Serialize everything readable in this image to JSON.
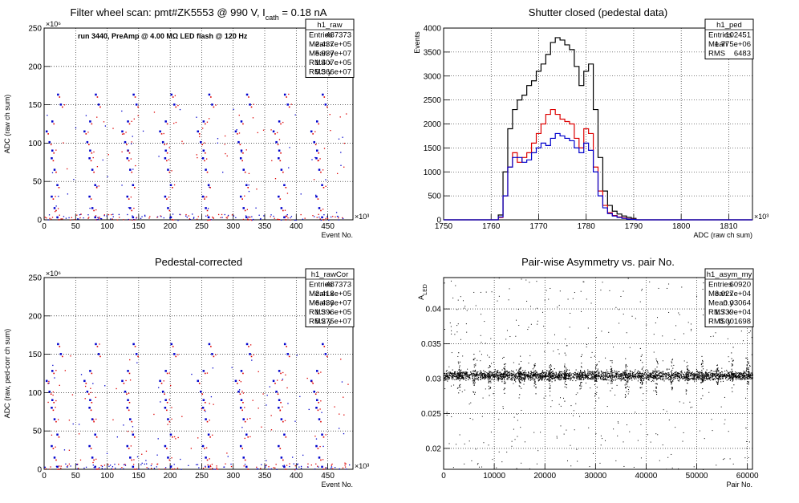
{
  "colors": {
    "black": "#000000",
    "red": "#dd0000",
    "blue": "#0000cc"
  },
  "panels": {
    "raw": {
      "title": "Filter wheel scan: pmt#ZK5553 @   990 V, I",
      "title_sub": "cath",
      "title_tail": " = 0.18 nA",
      "ylabel": "ADC (raw ch sum)",
      "xlabel": "Event No.",
      "yexp": "×10⁶",
      "xexp": "×10³",
      "annotation": "run 3440, PreAmp @ 4.00 MΩ LED flash @  120 Hz",
      "stats": {
        "name": "h1_raw",
        "rows": [
          [
            "Entries",
            "487373"
          ],
          [
            "Mean x",
            "2.437e+05"
          ],
          [
            "Mean y",
            "5.937e+07"
          ],
          [
            "RMS x",
            "1.407e+05"
          ],
          [
            "RMS y",
            "5.366e+07"
          ]
        ]
      }
    },
    "ped": {
      "title": "Shutter closed (pedestal data)",
      "ylabel": "Events",
      "xlabel": "ADC (raw ch sum)",
      "xexp": "×10³",
      "stats": {
        "name": "h1_ped",
        "rows": [
          [
            "Entries",
            "102451"
          ],
          [
            "Mean",
            "1.775e+06"
          ],
          [
            "RMS",
            "6483"
          ]
        ]
      }
    },
    "cor": {
      "title": "Pedestal-corrected",
      "ylabel": "ADC (raw, ped-corr ch sum)",
      "xlabel": "Event No.",
      "yexp": "×10⁶",
      "xexp": "×10³",
      "stats": {
        "name": "h1_rawCor",
        "rows": [
          [
            "Entries",
            "487373"
          ],
          [
            "Mean x",
            "2.418e+05"
          ],
          [
            "Mean y",
            "6.436e+07"
          ],
          [
            "RMS x",
            "1.396e+05"
          ],
          [
            "RMS y",
            "5.275e+07"
          ]
        ]
      }
    },
    "asym": {
      "title": "Pair-wise Asymmetry vs. pair No.",
      "ylabel": "A",
      "ylabel_sub": "LED",
      "xlabel": "Pair No.",
      "stats": {
        "name": "h1_asym_my",
        "rows": [
          [
            "Entries",
            "60920"
          ],
          [
            "Mean x",
            "3.027e+04"
          ],
          [
            "Mean y",
            "0.03064"
          ],
          [
            "RMS x",
            "1.739e+04"
          ],
          [
            "RMS y",
            "0.001698"
          ]
        ]
      }
    }
  },
  "chart_data": [
    {
      "type": "scatter",
      "title": "Filter wheel scan: pmt#ZK5553 @ 990 V, I_cath = 0.18 nA",
      "xlabel": "Event No.",
      "ylabel": "ADC (raw ch sum)",
      "xlim": [
        0,
        490
      ],
      "ylim": [
        0,
        250
      ],
      "x_scale": "x10^3",
      "y_scale": "x10^6",
      "x_ticks": [
        0,
        50,
        100,
        150,
        200,
        250,
        300,
        350,
        400,
        450
      ],
      "y_ticks": [
        0,
        50,
        100,
        150,
        200,
        250
      ],
      "grid": true,
      "legend": "top-right",
      "cycle_period": 60,
      "levels": [
        163,
        150,
        128,
        115,
        101,
        90,
        80,
        65,
        45,
        30,
        15,
        3
      ],
      "series": [
        {
          "color": "blue"
        },
        {
          "color": "red"
        }
      ]
    },
    {
      "type": "line",
      "title": "Shutter closed (pedestal data)",
      "xlabel": "ADC (raw ch sum)",
      "ylabel": "Events",
      "xlim": [
        1750,
        1815
      ],
      "ylim": [
        0,
        4000
      ],
      "x_scale": "x10^3",
      "x_ticks": [
        1750,
        1760,
        1770,
        1780,
        1790,
        1800,
        1810
      ],
      "y_ticks": [
        0,
        500,
        1000,
        1500,
        2000,
        2500,
        3000,
        3500,
        4000
      ],
      "grid": true,
      "legend": "top-right",
      "x": [
        1762,
        1763,
        1764,
        1765,
        1766,
        1767,
        1768,
        1769,
        1770,
        1771,
        1772,
        1773,
        1774,
        1775,
        1776,
        1777,
        1778,
        1779,
        1780,
        1781,
        1782,
        1783,
        1784,
        1785,
        1786,
        1787,
        1788,
        1789,
        1790
      ],
      "series": [
        {
          "color": "black",
          "values": [
            100,
            1000,
            1900,
            2300,
            2500,
            2600,
            2800,
            2900,
            3100,
            3250,
            3450,
            3700,
            3800,
            3750,
            3650,
            3550,
            3200,
            2800,
            3100,
            3250,
            2300,
            1300,
            600,
            300,
            180,
            120,
            80,
            50,
            30
          ]
        },
        {
          "color": "red",
          "values": [
            50,
            500,
            1100,
            1400,
            1200,
            1300,
            1400,
            1600,
            1800,
            2000,
            2200,
            2300,
            2200,
            2100,
            2050,
            2000,
            1700,
            1500,
            1900,
            1800,
            1100,
            600,
            300,
            150,
            90,
            60,
            40,
            20,
            10
          ]
        },
        {
          "color": "blue",
          "values": [
            60,
            500,
            1100,
            1300,
            1300,
            1200,
            1250,
            1400,
            1500,
            1600,
            1550,
            1700,
            1800,
            1750,
            1700,
            1650,
            1500,
            1400,
            1600,
            1450,
            1000,
            500,
            250,
            130,
            80,
            50,
            30,
            15,
            8
          ]
        }
      ]
    },
    {
      "type": "scatter",
      "title": "Pedestal-corrected",
      "xlabel": "Event No.",
      "ylabel": "ADC (raw, ped-corr ch sum)",
      "xlim": [
        0,
        490
      ],
      "ylim": [
        0,
        250
      ],
      "x_scale": "x10^3",
      "y_scale": "x10^6",
      "x_ticks": [
        0,
        50,
        100,
        150,
        200,
        250,
        300,
        350,
        400,
        450
      ],
      "y_ticks": [
        0,
        50,
        100,
        150,
        200,
        250
      ],
      "grid": true,
      "legend": "top-right",
      "cycle_period": 60,
      "levels": [
        163,
        150,
        128,
        115,
        101,
        90,
        80,
        65,
        45,
        30,
        15,
        3
      ],
      "series": [
        {
          "color": "blue"
        },
        {
          "color": "red"
        }
      ]
    },
    {
      "type": "scatter",
      "title": "Pair-wise Asymmetry vs. pair No.",
      "xlabel": "Pair No.",
      "ylabel": "A_LED",
      "xlim": [
        0,
        61000
      ],
      "ylim": [
        0.017,
        0.0445
      ],
      "x_ticks": [
        0,
        10000,
        20000,
        30000,
        40000,
        50000,
        60000
      ],
      "y_ticks": [
        0.02,
        0.025,
        0.03,
        0.035,
        0.04
      ],
      "grid": true,
      "legend": "top-right",
      "band_center": 0.0305,
      "band_halfwidth": 0.0012,
      "spike_period": 3000,
      "series": [
        {
          "color": "black"
        }
      ]
    }
  ]
}
